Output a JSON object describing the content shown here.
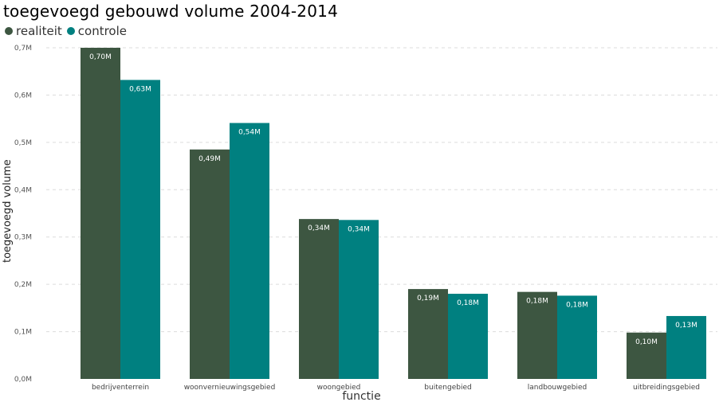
{
  "chart_data": {
    "type": "bar",
    "title": "toegevoegd gebouwd volume 2004-2014",
    "xlabel": "functie",
    "ylabel": "toegevoegd volume",
    "categories": [
      "bedrijventerrein",
      "woonvernieuwingsgebied",
      "woongebied",
      "buitengebied",
      "landbouwgebied",
      "uitbreidingsgebied"
    ],
    "series": [
      {
        "name": "realiteit",
        "color": "#3d5641",
        "values": [
          0.7,
          0.485,
          0.338,
          0.19,
          0.184,
          0.098
        ],
        "labels": [
          "0,70M",
          "0,49M",
          "0,34M",
          "0,19M",
          "0,18M",
          "0,10M"
        ]
      },
      {
        "name": "controle",
        "color": "#008080",
        "values": [
          0.632,
          0.541,
          0.336,
          0.18,
          0.176,
          0.133
        ],
        "labels": [
          "0,63M",
          "0,54M",
          "0,34M",
          "0,18M",
          "0,18M",
          "0,13M"
        ]
      }
    ],
    "ylim": [
      0,
      0.7
    ],
    "yticks": [
      0,
      0.1,
      0.2,
      0.3,
      0.4,
      0.5,
      0.6,
      0.7
    ],
    "ytick_labels": [
      "0,0M",
      "0,1M",
      "0,2M",
      "0,3M",
      "0,4M",
      "0,5M",
      "0,6M",
      "0,7M"
    ],
    "grid": true,
    "legend_position": "top-left"
  }
}
